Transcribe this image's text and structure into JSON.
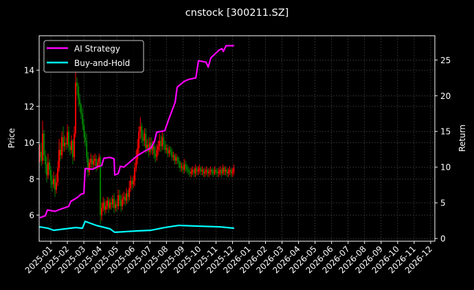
{
  "chart_data": {
    "type": "line",
    "title": "cnstock [300211.SZ]",
    "xlabel": "",
    "ylabel": "Price",
    "y2label": "Return",
    "ylim": [
      4.56,
      15.9
    ],
    "y2lim": [
      -0.38,
      28.4
    ],
    "grid": true,
    "legend_position": "upper left",
    "x_ticks": [
      "2025-01",
      "2025-02",
      "2025-03",
      "2025-04",
      "2025-05",
      "2025-06",
      "2025-07",
      "2025-08",
      "2025-09",
      "2025-10",
      "2025-11",
      "2025-12",
      "2026-01",
      "2026-02",
      "2026-03",
      "2026-04",
      "2026-05",
      "2026-06",
      "2026-07",
      "2026-08",
      "2026-09",
      "2026-10",
      "2026-11",
      "2026-12"
    ],
    "y_ticks": [
      6,
      8,
      10,
      12,
      14
    ],
    "y2_ticks": [
      0,
      5,
      10,
      15,
      20,
      25
    ],
    "x_unit": "months since 2025-01-01",
    "series": [
      {
        "name": "AI Strategy",
        "axis": "right",
        "color": "#ff00ff",
        "x": [
          -0.67,
          -0.33,
          -0.21,
          0.25,
          0.46,
          1.08,
          1.21,
          1.58,
          1.83,
          2.0,
          2.08,
          2.54,
          2.87,
          3.08,
          3.21,
          3.58,
          3.83,
          3.87,
          4.08,
          4.21,
          4.42,
          4.83,
          5.24,
          5.66,
          6.07,
          6.28,
          6.41,
          6.9,
          7.11,
          7.32,
          7.53,
          7.65,
          7.86,
          8.07,
          8.36,
          8.78,
          8.94,
          9.4,
          9.53,
          9.69,
          10.19,
          10.36,
          10.44,
          10.61,
          11.1
        ],
        "values": [
          2.9,
          3.2,
          4.0,
          3.8,
          4.0,
          4.5,
          5.2,
          5.7,
          6.2,
          6.3,
          9.8,
          9.7,
          10.1,
          10.2,
          11.25,
          11.35,
          11.15,
          8.9,
          9.1,
          10.1,
          10.0,
          10.8,
          11.6,
          12.2,
          12.7,
          13.65,
          14.9,
          15.1,
          16.5,
          17.8,
          19.1,
          21.2,
          21.6,
          22.0,
          22.3,
          22.5,
          24.9,
          24.7,
          24.0,
          25.3,
          26.4,
          26.6,
          26.2,
          27.0,
          27.0
        ]
      },
      {
        "name": "Buy-and-Hold",
        "axis": "right",
        "color": "#00ffff",
        "x": [
          -0.71,
          -0.17,
          0.17,
          0.87,
          1.5,
          1.91,
          2.08,
          2.75,
          3.58,
          3.87,
          5.24,
          6.07,
          6.9,
          7.74,
          8.99,
          10.24,
          11.1
        ],
        "values": [
          1.63,
          1.44,
          1.15,
          1.35,
          1.54,
          1.44,
          2.4,
          1.83,
          1.35,
          0.87,
          1.06,
          1.15,
          1.54,
          1.83,
          1.73,
          1.63,
          1.44
        ]
      },
      {
        "name": "Price (candlestick)",
        "axis": "left",
        "type": "candlestick",
        "up_color": "#ff0000",
        "down_color": "#008000",
        "x": [
          -0.67,
          -0.58,
          -0.5,
          -0.42,
          -0.33,
          -0.25,
          -0.17,
          -0.08,
          0.0,
          0.08,
          0.17,
          0.25,
          0.33,
          0.42,
          0.5,
          0.58,
          0.67,
          0.75,
          0.83,
          0.92,
          1.0,
          1.08,
          1.17,
          1.25,
          1.33,
          1.42,
          1.5,
          1.58,
          1.67,
          1.75,
          1.83,
          1.92,
          2.0,
          2.04,
          2.08,
          2.17,
          2.25,
          2.33,
          2.42,
          2.5,
          2.58,
          2.67,
          2.75,
          2.83,
          2.92,
          3.0,
          3.08,
          3.17,
          3.25,
          3.33,
          3.42,
          3.5,
          3.58,
          3.67,
          3.75,
          3.83,
          3.92,
          4.0,
          4.08,
          4.17,
          4.25,
          4.33,
          4.42,
          4.5,
          4.58,
          4.67,
          4.75,
          4.83,
          4.92,
          5.0,
          5.08,
          5.17,
          5.25,
          5.33,
          5.42,
          5.5,
          5.58,
          5.67,
          5.75,
          5.83,
          5.92,
          6.0,
          6.08,
          6.17,
          6.25,
          6.33,
          6.42,
          6.5,
          6.58,
          6.67,
          6.75,
          6.83,
          6.92,
          7.0,
          7.08,
          7.17,
          7.25,
          7.33,
          7.42,
          7.5,
          7.58,
          7.67,
          7.75,
          7.83,
          7.92,
          8.0,
          8.08,
          8.17,
          8.25,
          8.33,
          8.42,
          8.5,
          8.58,
          8.67,
          8.75,
          8.83,
          8.92,
          9.0,
          9.08,
          9.17,
          9.25,
          9.33,
          9.42,
          9.5,
          9.58,
          9.67,
          9.75,
          9.83,
          9.92,
          10.0,
          10.08,
          10.17,
          10.25,
          10.33,
          10.42,
          10.5,
          10.58,
          10.67,
          10.75,
          10.83,
          10.92,
          11.0,
          11.08
        ],
        "open": [
          9.2,
          9.5,
          9.0,
          10.5,
          9.3,
          8.8,
          8.2,
          8.9,
          8.5,
          7.9,
          7.7,
          8.0,
          7.4,
          7.8,
          8.6,
          9.6,
          9.3,
          10.3,
          9.8,
          10.0,
          9.9,
          10.6,
          9.8,
          9.6,
          10.1,
          9.2,
          10.5,
          13.3,
          13.1,
          12.4,
          12.1,
          11.6,
          11.0,
          10.6,
          10.3,
          10.1,
          9.2,
          8.4,
          8.9,
          9.1,
          8.8,
          9.0,
          9.1,
          8.7,
          8.9,
          9.2,
          6.0,
          6.4,
          6.7,
          6.3,
          6.5,
          6.8,
          6.4,
          6.7,
          6.6,
          6.9,
          6.4,
          6.6,
          6.5,
          7.1,
          6.8,
          6.5,
          6.9,
          7.0,
          6.8,
          7.2,
          7.0,
          7.5,
          7.9,
          7.7,
          7.9,
          8.6,
          9.1,
          9.7,
          10.6,
          10.9,
          10.3,
          10.1,
          10.5,
          9.7,
          9.9,
          9.5,
          10.0,
          9.6,
          9.8,
          9.4,
          9.2,
          9.6,
          9.8,
          10.1,
          9.8,
          10.3,
          9.9,
          9.6,
          9.7,
          9.4,
          9.6,
          9.5,
          9.2,
          9.3,
          9.0,
          9.2,
          9.0,
          8.9,
          8.6,
          8.7,
          8.5,
          8.8,
          8.6,
          8.5,
          8.4,
          8.3,
          8.4,
          8.5,
          8.3,
          8.6,
          8.4,
          8.5,
          8.6,
          8.4,
          8.5,
          8.3,
          8.4,
          8.5,
          8.3,
          8.4,
          8.5,
          8.4,
          8.3,
          8.5,
          8.4,
          8.3,
          8.4,
          8.5,
          8.3,
          8.6,
          8.4,
          8.5,
          8.3,
          8.4,
          8.5,
          8.3,
          8.4
        ],
        "close": [
          9.5,
          9.0,
          10.5,
          9.3,
          8.8,
          8.2,
          8.9,
          8.5,
          7.9,
          7.7,
          8.0,
          7.4,
          7.8,
          8.6,
          9.6,
          9.3,
          10.3,
          9.8,
          10.0,
          9.9,
          10.6,
          9.8,
          9.6,
          10.1,
          9.2,
          10.5,
          13.3,
          13.1,
          12.4,
          12.1,
          11.6,
          11.0,
          10.6,
          10.3,
          10.1,
          9.2,
          8.4,
          8.9,
          9.1,
          8.8,
          9.0,
          9.1,
          8.7,
          8.9,
          9.2,
          6.0,
          6.4,
          6.7,
          6.3,
          6.5,
          6.8,
          6.4,
          6.7,
          6.6,
          6.9,
          6.4,
          6.6,
          6.5,
          7.1,
          6.8,
          6.5,
          6.9,
          7.0,
          6.8,
          7.2,
          7.0,
          7.5,
          7.9,
          7.7,
          7.9,
          8.6,
          9.1,
          9.7,
          10.6,
          10.9,
          10.3,
          10.1,
          10.5,
          9.7,
          9.9,
          9.5,
          10.0,
          9.6,
          9.8,
          9.4,
          9.2,
          9.6,
          9.8,
          10.1,
          9.8,
          10.3,
          9.9,
          9.6,
          9.7,
          9.4,
          9.6,
          9.5,
          9.2,
          9.3,
          9.0,
          9.2,
          9.0,
          8.9,
          8.6,
          8.7,
          8.5,
          8.8,
          8.6,
          8.5,
          8.4,
          8.3,
          8.4,
          8.5,
          8.3,
          8.6,
          8.4,
          8.5,
          8.6,
          8.4,
          8.5,
          8.3,
          8.4,
          8.5,
          8.3,
          8.4,
          8.5,
          8.4,
          8.3,
          8.5,
          8.4,
          8.3,
          8.4,
          8.5,
          8.3,
          8.6,
          8.4,
          8.5,
          8.3,
          8.4,
          8.5,
          8.3,
          8.4,
          8.6
        ],
        "high": [
          9.9,
          10.0,
          11.2,
          10.7,
          9.6,
          9.2,
          9.4,
          9.1,
          8.7,
          8.2,
          8.4,
          8.2,
          8.3,
          9.0,
          10.2,
          10.0,
          10.6,
          10.9,
          10.4,
          10.3,
          11.0,
          10.9,
          10.0,
          10.4,
          10.2,
          10.9,
          14.0,
          13.6,
          13.3,
          12.7,
          12.2,
          11.9,
          11.3,
          10.9,
          10.6,
          10.5,
          9.5,
          9.1,
          9.4,
          9.3,
          9.3,
          9.4,
          9.3,
          9.1,
          9.4,
          9.3,
          6.7,
          7.0,
          6.9,
          6.8,
          7.0,
          7.0,
          6.9,
          7.0,
          7.1,
          7.2,
          6.8,
          6.9,
          7.4,
          7.4,
          7.1,
          7.2,
          7.3,
          7.2,
          7.5,
          7.4,
          7.9,
          8.2,
          8.1,
          8.2,
          8.9,
          9.6,
          10.2,
          10.9,
          11.4,
          11.1,
          10.7,
          10.8,
          10.8,
          10.2,
          10.3,
          10.3,
          10.3,
          10.1,
          10.0,
          9.8,
          9.9,
          10.1,
          10.5,
          10.4,
          10.6,
          10.5,
          10.1,
          9.9,
          9.9,
          9.8,
          9.8,
          9.7,
          9.5,
          9.4,
          9.4,
          9.3,
          9.2,
          9.0,
          8.9,
          8.9,
          9.1,
          9.0,
          8.8,
          8.7,
          8.6,
          8.6,
          8.7,
          8.6,
          8.8,
          8.7,
          8.7,
          8.8,
          8.7,
          8.7,
          8.6,
          8.6,
          8.7,
          8.6,
          8.6,
          8.7,
          8.6,
          8.6,
          8.7,
          8.6,
          8.6,
          8.6,
          8.7,
          8.6,
          8.8,
          8.7,
          8.7,
          8.6,
          8.6,
          8.7,
          8.6,
          8.6,
          8.8
        ],
        "low": [
          8.9,
          8.7,
          8.8,
          9.0,
          8.3,
          7.8,
          8.0,
          8.2,
          7.5,
          7.3,
          7.5,
          7.0,
          7.2,
          7.6,
          8.4,
          9.0,
          9.1,
          9.5,
          9.5,
          9.6,
          9.7,
          9.5,
          9.3,
          9.4,
          8.8,
          9.0,
          10.3,
          12.6,
          12.0,
          11.7,
          11.3,
          10.7,
          10.3,
          10.0,
          9.8,
          8.9,
          8.1,
          8.2,
          8.6,
          8.5,
          8.6,
          8.7,
          8.4,
          8.5,
          8.6,
          5.5,
          5.7,
          6.2,
          6.0,
          6.1,
          6.3,
          6.1,
          6.3,
          6.3,
          6.4,
          6.1,
          6.2,
          6.2,
          6.3,
          6.5,
          6.2,
          6.3,
          6.6,
          6.5,
          6.6,
          6.7,
          6.8,
          7.3,
          7.4,
          7.5,
          7.6,
          8.4,
          8.8,
          9.3,
          10.2,
          10.0,
          9.8,
          9.8,
          9.4,
          9.5,
          9.2,
          9.3,
          9.4,
          9.3,
          9.1,
          8.9,
          9.0,
          9.3,
          9.5,
          9.5,
          9.6,
          9.6,
          9.4,
          9.4,
          9.2,
          9.2,
          9.3,
          9.0,
          9.0,
          8.8,
          8.8,
          8.8,
          8.6,
          8.4,
          8.4,
          8.3,
          8.3,
          8.4,
          8.3,
          8.2,
          8.1,
          8.1,
          8.2,
          8.1,
          8.1,
          8.2,
          8.2,
          8.3,
          8.2,
          8.2,
          8.1,
          8.1,
          8.2,
          8.1,
          8.1,
          8.2,
          8.2,
          8.1,
          8.2,
          8.2,
          8.1,
          8.1,
          8.2,
          8.1,
          8.2,
          8.2,
          8.2,
          8.1,
          8.1,
          8.2,
          8.1,
          8.1,
          8.2
        ]
      }
    ]
  },
  "title": "cnstock [300211.SZ]",
  "axes": {
    "ylabel": "Price",
    "y2label": "Return"
  },
  "legend": {
    "items": [
      {
        "label": "AI Strategy",
        "color": "#ff00ff"
      },
      {
        "label": "Buy-and-Hold",
        "color": "#00ffff"
      }
    ]
  },
  "colors": {
    "background": "#000000",
    "axes": "#ffffff",
    "grid": "#555555",
    "up": "#ff0000",
    "down": "#008000"
  }
}
